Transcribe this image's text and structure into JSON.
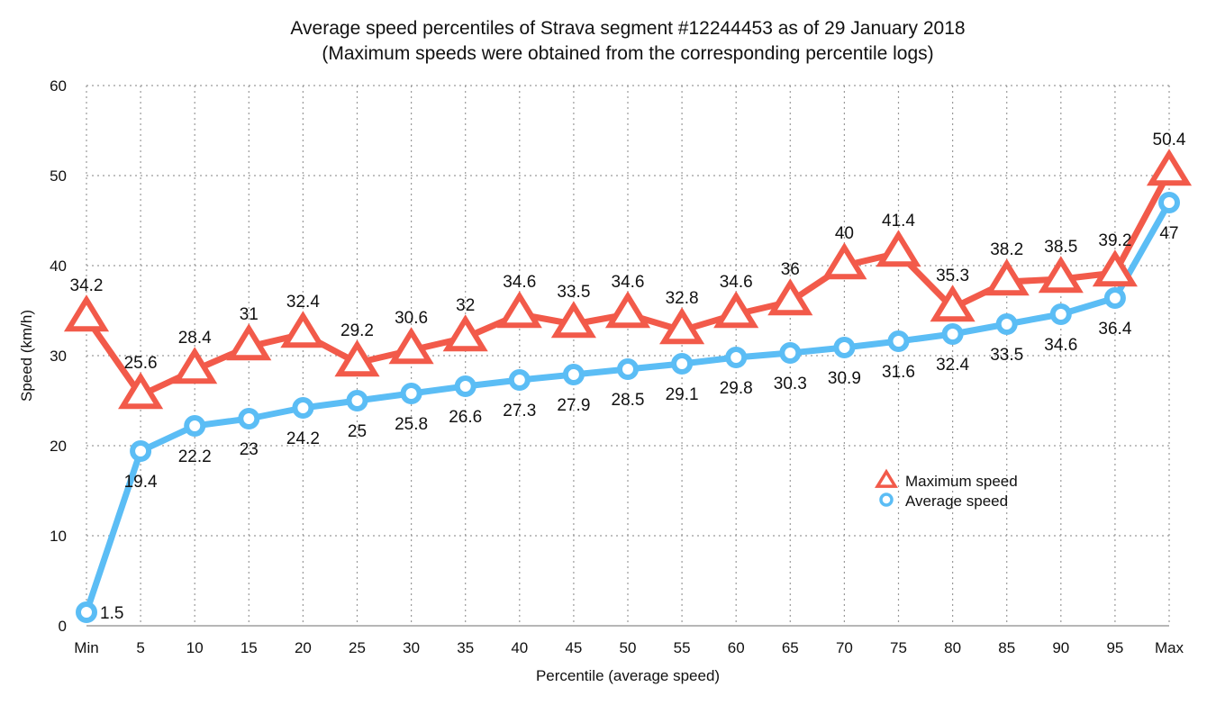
{
  "chart_data": {
    "type": "line",
    "title": "Average speed percentiles of Strava segment #12244453 as of 29 January 2018",
    "subtitle": "(Maximum speeds were obtained from the corresponding percentile logs)",
    "xlabel": "Percentile (average speed)",
    "ylabel": "Speed (km/h)",
    "ylim": [
      0,
      60
    ],
    "yticks": [
      0,
      10,
      20,
      30,
      40,
      50,
      60
    ],
    "grid": true,
    "legend_position": "right-middle",
    "categories": [
      "Min",
      "5",
      "10",
      "15",
      "20",
      "25",
      "30",
      "35",
      "40",
      "45",
      "50",
      "55",
      "60",
      "65",
      "70",
      "75",
      "80",
      "85",
      "90",
      "95",
      "Max"
    ],
    "series": [
      {
        "name": "Maximum speed",
        "marker": "triangle",
        "color": "#F25A4A",
        "values": [
          34.2,
          25.6,
          28.4,
          31,
          32.4,
          29.2,
          30.6,
          32,
          34.6,
          33.5,
          34.6,
          32.8,
          34.6,
          36,
          40,
          41.4,
          35.3,
          38.2,
          38.5,
          39.2,
          50.4
        ],
        "labels": [
          "34.2",
          "25.6",
          "28.4",
          "31",
          "32.4",
          "29.2",
          "30.6",
          "32",
          "34.6",
          "33.5",
          "34.6",
          "32.8",
          "34.6",
          "36",
          "40",
          "41.4",
          "35.3",
          "38.2",
          "38.5",
          "39.2",
          "50.4"
        ]
      },
      {
        "name": "Average speed",
        "marker": "circle",
        "color": "#5BBDF5",
        "values": [
          1.5,
          19.4,
          22.2,
          23,
          24.2,
          25,
          25.8,
          26.6,
          27.3,
          27.9,
          28.5,
          29.1,
          29.8,
          30.3,
          30.9,
          31.6,
          32.4,
          33.5,
          34.6,
          36.4,
          47
        ],
        "labels": [
          "1.5",
          "19.4",
          "22.2",
          "23",
          "24.2",
          "25",
          "25.8",
          "26.6",
          "27.3",
          "27.9",
          "28.5",
          "29.1",
          "29.8",
          "30.3",
          "30.9",
          "31.6",
          "32.4",
          "33.5",
          "34.6",
          "36.4",
          "47"
        ]
      }
    ]
  }
}
